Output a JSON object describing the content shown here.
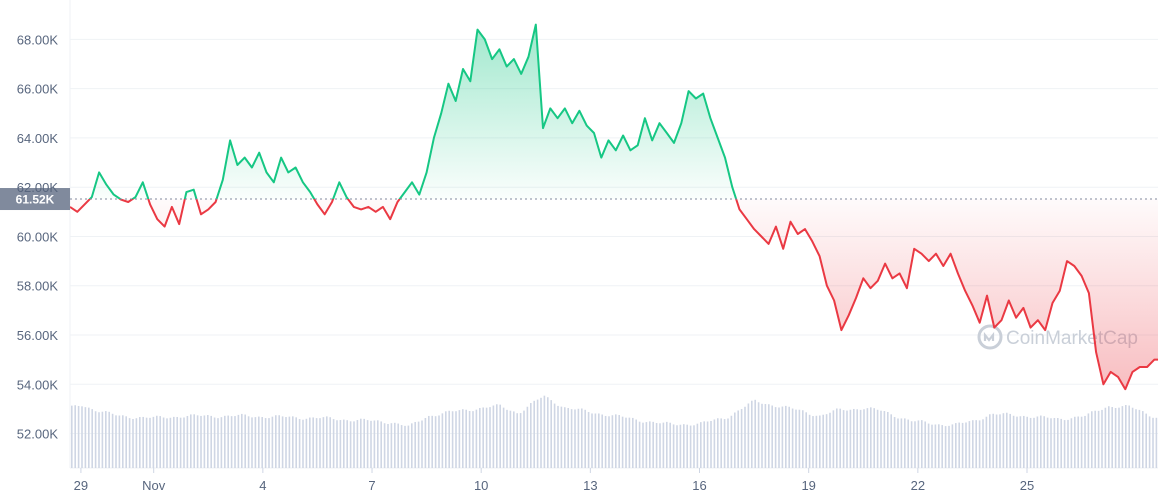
{
  "chart_data": {
    "type": "line",
    "title": "",
    "xlabel": "",
    "ylabel": "",
    "ylim": [
      50600,
      69600
    ],
    "y_ticks": [
      52000,
      54000,
      56000,
      58000,
      60000,
      62000,
      64000,
      66000,
      68000
    ],
    "y_tick_labels": [
      "52.00K",
      "54.00K",
      "56.00K",
      "58.00K",
      "60.00K",
      "62.00K",
      "64.00K",
      "66.00K",
      "68.00K"
    ],
    "x_range": [
      -2.3,
      27.6
    ],
    "x_ticks": [
      -2,
      0,
      3,
      6,
      9,
      12,
      15,
      18,
      21,
      24
    ],
    "x_tick_labels": [
      "29",
      "Nov",
      "4",
      "7",
      "10",
      "13",
      "16",
      "19",
      "22",
      "25"
    ],
    "x_note": "x = days since Nov 1",
    "reference_price": 61520,
    "reference_label": "61.52K",
    "colors": {
      "above": "#16c784",
      "below": "#ea3943",
      "volume": "#cfd6e4",
      "grid": "#eff2f5",
      "ref_badge": "#808a9d"
    },
    "watermark": "CoinMarketCap",
    "price_points": [
      [
        -2.3,
        61200
      ],
      [
        -2.1,
        61000
      ],
      [
        -1.9,
        61300
      ],
      [
        -1.7,
        61600
      ],
      [
        -1.5,
        62600
      ],
      [
        -1.3,
        62100
      ],
      [
        -1.1,
        61700
      ],
      [
        -0.9,
        61500
      ],
      [
        -0.7,
        61400
      ],
      [
        -0.5,
        61600
      ],
      [
        -0.3,
        62200
      ],
      [
        -0.1,
        61300
      ],
      [
        0.1,
        60700
      ],
      [
        0.3,
        60400
      ],
      [
        0.5,
        61200
      ],
      [
        0.7,
        60500
      ],
      [
        0.9,
        61800
      ],
      [
        1.1,
        61900
      ],
      [
        1.3,
        60900
      ],
      [
        1.5,
        61100
      ],
      [
        1.7,
        61400
      ],
      [
        1.9,
        62300
      ],
      [
        2.1,
        63900
      ],
      [
        2.3,
        62900
      ],
      [
        2.5,
        63200
      ],
      [
        2.7,
        62800
      ],
      [
        2.9,
        63400
      ],
      [
        3.1,
        62600
      ],
      [
        3.3,
        62200
      ],
      [
        3.5,
        63200
      ],
      [
        3.7,
        62600
      ],
      [
        3.9,
        62800
      ],
      [
        4.1,
        62200
      ],
      [
        4.3,
        61800
      ],
      [
        4.5,
        61300
      ],
      [
        4.7,
        60900
      ],
      [
        4.9,
        61400
      ],
      [
        5.1,
        62200
      ],
      [
        5.3,
        61600
      ],
      [
        5.5,
        61200
      ],
      [
        5.7,
        61100
      ],
      [
        5.9,
        61200
      ],
      [
        6.1,
        61000
      ],
      [
        6.3,
        61200
      ],
      [
        6.5,
        60700
      ],
      [
        6.7,
        61400
      ],
      [
        6.9,
        61800
      ],
      [
        7.1,
        62200
      ],
      [
        7.3,
        61700
      ],
      [
        7.5,
        62600
      ],
      [
        7.7,
        64000
      ],
      [
        7.9,
        65000
      ],
      [
        8.1,
        66200
      ],
      [
        8.3,
        65500
      ],
      [
        8.5,
        66800
      ],
      [
        8.7,
        66300
      ],
      [
        8.9,
        68400
      ],
      [
        9.1,
        68000
      ],
      [
        9.3,
        67200
      ],
      [
        9.5,
        67600
      ],
      [
        9.7,
        66900
      ],
      [
        9.9,
        67200
      ],
      [
        10.1,
        66600
      ],
      [
        10.3,
        67300
      ],
      [
        10.5,
        68600
      ],
      [
        10.7,
        64400
      ],
      [
        10.9,
        65200
      ],
      [
        11.1,
        64800
      ],
      [
        11.3,
        65200
      ],
      [
        11.5,
        64600
      ],
      [
        11.7,
        65100
      ],
      [
        11.9,
        64500
      ],
      [
        12.1,
        64200
      ],
      [
        12.3,
        63200
      ],
      [
        12.5,
        63900
      ],
      [
        12.7,
        63500
      ],
      [
        12.9,
        64100
      ],
      [
        13.1,
        63500
      ],
      [
        13.3,
        63700
      ],
      [
        13.5,
        64800
      ],
      [
        13.7,
        63900
      ],
      [
        13.9,
        64600
      ],
      [
        14.1,
        64200
      ],
      [
        14.3,
        63800
      ],
      [
        14.5,
        64600
      ],
      [
        14.7,
        65900
      ],
      [
        14.9,
        65600
      ],
      [
        15.1,
        65800
      ],
      [
        15.3,
        64800
      ],
      [
        15.5,
        64000
      ],
      [
        15.7,
        63200
      ],
      [
        15.9,
        62000
      ],
      [
        16.1,
        61100
      ],
      [
        16.3,
        60700
      ],
      [
        16.5,
        60300
      ],
      [
        16.7,
        60000
      ],
      [
        16.9,
        59700
      ],
      [
        17.1,
        60400
      ],
      [
        17.3,
        59500
      ],
      [
        17.5,
        60600
      ],
      [
        17.7,
        60100
      ],
      [
        17.9,
        60300
      ],
      [
        18.1,
        59800
      ],
      [
        18.3,
        59200
      ],
      [
        18.5,
        58000
      ],
      [
        18.7,
        57400
      ],
      [
        18.9,
        56200
      ],
      [
        19.1,
        56800
      ],
      [
        19.3,
        57500
      ],
      [
        19.5,
        58300
      ],
      [
        19.7,
        57900
      ],
      [
        19.9,
        58200
      ],
      [
        20.1,
        58900
      ],
      [
        20.3,
        58300
      ],
      [
        20.5,
        58500
      ],
      [
        20.7,
        57900
      ],
      [
        20.9,
        59500
      ],
      [
        21.1,
        59300
      ],
      [
        21.3,
        59000
      ],
      [
        21.5,
        59300
      ],
      [
        21.7,
        58800
      ],
      [
        21.9,
        59300
      ],
      [
        22.1,
        58500
      ],
      [
        22.3,
        57800
      ],
      [
        22.5,
        57200
      ],
      [
        22.7,
        56500
      ],
      [
        22.9,
        57600
      ],
      [
        23.1,
        56300
      ],
      [
        23.3,
        56600
      ],
      [
        23.5,
        57400
      ],
      [
        23.7,
        56700
      ],
      [
        23.9,
        57100
      ],
      [
        24.1,
        56300
      ],
      [
        24.3,
        56600
      ],
      [
        24.5,
        56200
      ],
      [
        24.7,
        57300
      ],
      [
        24.9,
        57800
      ],
      [
        25.1,
        59000
      ],
      [
        25.3,
        58800
      ],
      [
        25.5,
        58400
      ],
      [
        25.7,
        57700
      ],
      [
        25.9,
        55300
      ],
      [
        26.1,
        54000
      ],
      [
        26.3,
        54500
      ],
      [
        26.5,
        54300
      ],
      [
        26.7,
        53800
      ],
      [
        26.9,
        54500
      ],
      [
        27.1,
        54700
      ],
      [
        27.3,
        54700
      ],
      [
        27.5,
        55000
      ],
      [
        27.6,
        55000
      ]
    ],
    "volume_profile": [
      [
        -2.3,
        0.6
      ],
      [
        -2.0,
        0.63
      ],
      [
        -1.6,
        0.58
      ],
      [
        -1.0,
        0.52
      ],
      [
        0.0,
        0.5
      ],
      [
        0.8,
        0.52
      ],
      [
        1.5,
        0.52
      ],
      [
        2.5,
        0.52
      ],
      [
        3.5,
        0.51
      ],
      [
        4.5,
        0.5
      ],
      [
        5.5,
        0.48
      ],
      [
        6.5,
        0.46
      ],
      [
        7.0,
        0.41
      ],
      [
        7.5,
        0.52
      ],
      [
        8.5,
        0.58
      ],
      [
        9.5,
        0.62
      ],
      [
        10.0,
        0.55
      ],
      [
        10.7,
        0.72
      ],
      [
        11.3,
        0.6
      ],
      [
        12.5,
        0.53
      ],
      [
        13.5,
        0.47
      ],
      [
        14.0,
        0.44
      ],
      [
        15.0,
        0.44
      ],
      [
        15.8,
        0.52
      ],
      [
        16.5,
        0.67
      ],
      [
        17.0,
        0.63
      ],
      [
        17.8,
        0.57
      ],
      [
        18.3,
        0.52
      ],
      [
        18.8,
        0.58
      ],
      [
        19.5,
        0.6
      ],
      [
        20.0,
        0.57
      ],
      [
        20.8,
        0.47
      ],
      [
        21.5,
        0.44
      ],
      [
        22.0,
        0.43
      ],
      [
        22.5,
        0.47
      ],
      [
        23.0,
        0.54
      ],
      [
        24.0,
        0.52
      ],
      [
        24.8,
        0.49
      ],
      [
        25.6,
        0.52
      ],
      [
        26.2,
        0.62
      ],
      [
        26.8,
        0.61
      ],
      [
        27.6,
        0.5
      ]
    ]
  }
}
